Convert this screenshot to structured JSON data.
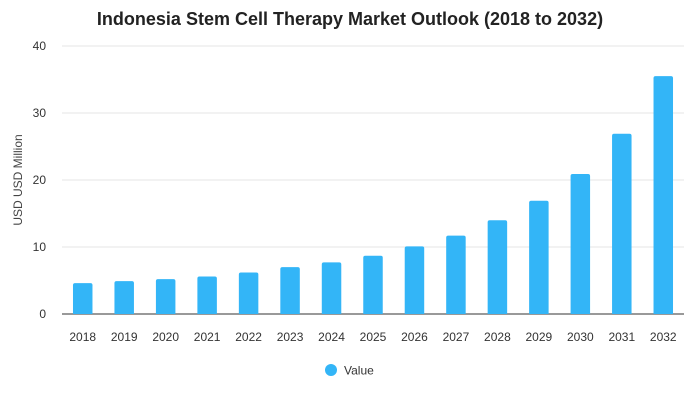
{
  "chart_data": {
    "type": "bar",
    "title": "Indonesia Stem Cell Therapy Market Outlook (2018 to 2032)",
    "xlabel": "",
    "ylabel": "USD USD Million",
    "categories": [
      "2018",
      "2019",
      "2020",
      "2021",
      "2022",
      "2023",
      "2024",
      "2025",
      "2026",
      "2027",
      "2028",
      "2029",
      "2030",
      "2031",
      "2032"
    ],
    "series": [
      {
        "name": "Value",
        "color": "#33b5f7",
        "values": [
          4.6,
          4.9,
          5.2,
          5.6,
          6.2,
          7.0,
          7.7,
          8.7,
          10.1,
          11.7,
          14.0,
          16.9,
          20.9,
          26.9,
          35.5
        ]
      }
    ],
    "ylim": [
      0,
      40
    ],
    "yticks": [
      0,
      10,
      20,
      30,
      40
    ],
    "grid": true,
    "legend_position": "bottom"
  }
}
